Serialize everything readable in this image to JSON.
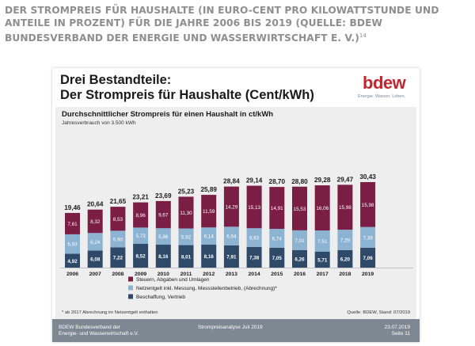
{
  "page": {
    "heading": "DER STROMPREIS FÜR HAUSHALTE (IN EURO-CENT PRO KILOWATTSTUNDE UND ANTEILE IN PROZENT) FÜR DIE JAHRE 2006 BIS 2019 (QUELLE: BDEW BUNDESVERBAND DER ENERGIE UND WASSERWIRTSCHAFT E. V.)",
    "footnote_ref": "14"
  },
  "slide": {
    "title_line1": "Drei Bestandteile:",
    "title_line2": "Der Strompreis für Haushalte (Cent/kWh)",
    "logo": "bdew",
    "logo_tagline": "Energie. Wasser. Leben.",
    "footer_left_line1": "BDEW Bundesverband der",
    "footer_left_line2": "Energie- und Wasserwirtschaft e.V.",
    "footer_center": "Strompreisanalyse Juli 2019",
    "footer_right_line1": "23.07.2019",
    "footer_right_line2": "Seite 11"
  },
  "chart_data": {
    "type": "bar",
    "stacked": true,
    "title": "Durchschnittlicher Strompreis für einen Haushalt in ct/kWh",
    "subtitle": "Jahresverbrauch von 3.500 kWh",
    "categories": [
      "2006",
      "2007",
      "2008",
      "2009",
      "2010",
      "2011",
      "2012",
      "2013",
      "2014",
      "2015",
      "2016",
      "2017",
      "2018",
      "2019"
    ],
    "totals": [
      "19,46",
      "20,64",
      "21,65",
      "23,21",
      "23,69",
      "25,23",
      "25,89",
      "28,84",
      "29,14",
      "28,70",
      "28,80",
      "29,28",
      "29,47",
      "30,43"
    ],
    "series": [
      {
        "name": "Beschaffung, Vertrieb",
        "color": "#2e4a68",
        "values": [
          4.92,
          6.08,
          7.22,
          8.52,
          8.16,
          8.01,
          8.16,
          7.91,
          7.38,
          7.05,
          6.26,
          5.71,
          6.2,
          7.06
        ],
        "labels": [
          "4,92",
          "6,08",
          "7,22",
          "8,52",
          "8,16",
          "8,01",
          "8,16",
          "7,91",
          "7,38",
          "7,05",
          "6,26",
          "5,71",
          "6,20",
          "7,06"
        ]
      },
      {
        "name": "Netzentgelt inkl. Messung, Messstellenbetrieb, (Abrechnung)*",
        "color": "#8db3d2",
        "values": [
          6.93,
          6.24,
          5.9,
          5.73,
          5.86,
          5.92,
          6.14,
          6.64,
          6.63,
          6.74,
          7.01,
          7.51,
          7.29,
          7.39
        ],
        "labels": [
          "6,93",
          "6,24",
          "5,90",
          "5,73",
          "5,86",
          "5,92",
          "6,14",
          "6,64",
          "6,63",
          "6,74",
          "7,01",
          "7,51",
          "7,29",
          "7,39"
        ]
      },
      {
        "name": "Steuern, Abgaben und Umlagen",
        "color": "#7a1e45",
        "values": [
          7.61,
          8.32,
          8.53,
          8.96,
          9.67,
          11.3,
          11.59,
          14.29,
          15.13,
          14.91,
          15.53,
          16.06,
          15.98,
          15.98
        ],
        "labels": [
          "7,61",
          "8,32",
          "8,53",
          "8,96",
          "9,67",
          "11,30",
          "11,59",
          "14,29",
          "15,13",
          "14,91",
          "15,53",
          "16,06",
          "15,98",
          "15,98"
        ]
      }
    ],
    "legend_order": [
      2,
      1,
      0
    ],
    "legend_position": "bottom-left",
    "footnote": "* ab 2017 Abrechnung im Netzentgelt enthalten",
    "source": "Quelle: BDEW, Stand: 07/2019",
    "grid": false
  }
}
